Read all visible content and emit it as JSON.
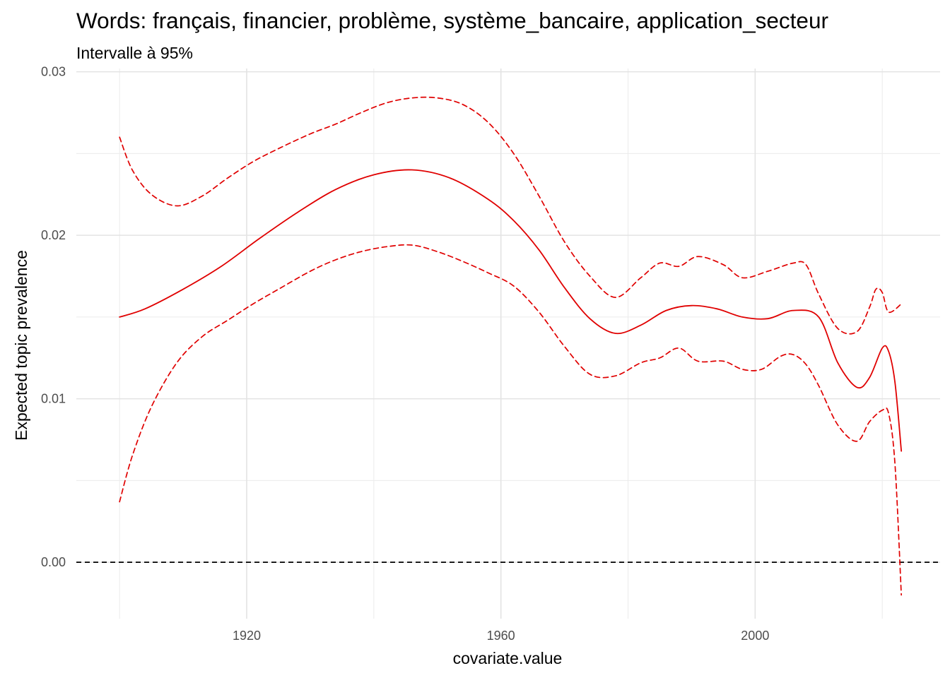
{
  "chart_data": {
    "type": "line",
    "title": "Words: français, financier, problème, système_bancaire, application_secteur",
    "subtitle": "Intervalle à 95%",
    "xlabel": "covariate.value",
    "ylabel": "Expected topic prevalence",
    "xlim": [
      1893.2,
      2029.1
    ],
    "ylim": [
      -0.00345,
      0.0302
    ],
    "x_ticks": [
      1920,
      1960,
      2000
    ],
    "x_tick_labels": [
      "1920",
      "1960",
      "2000"
    ],
    "y_ticks": [
      0,
      0.01,
      0.02,
      0.03
    ],
    "y_tick_labels": [
      "0.00",
      "0.01",
      "0.02",
      "0.03"
    ],
    "grid": true,
    "reference_line": {
      "y": 0,
      "style": "dashed",
      "color": "#000000"
    },
    "line_color": "#e00000",
    "series": [
      {
        "role": "estimate",
        "style": "solid",
        "x": [
          1900,
          1904,
          1910,
          1916,
          1922,
          1928,
          1934,
          1940,
          1946,
          1952,
          1958,
          1962,
          1966,
          1970,
          1974,
          1978,
          1982,
          1986,
          1990,
          1994,
          1998,
          2002,
          2006,
          2010,
          2013,
          2016,
          2018,
          2020,
          2021,
          2022,
          2023
        ],
        "values": [
          0.015,
          0.0155,
          0.0167,
          0.0181,
          0.0198,
          0.0214,
          0.0228,
          0.0237,
          0.024,
          0.0235,
          0.0222,
          0.0209,
          0.0191,
          0.0168,
          0.0149,
          0.014,
          0.0145,
          0.0154,
          0.0157,
          0.0155,
          0.015,
          0.0149,
          0.0154,
          0.015,
          0.0122,
          0.0107,
          0.0113,
          0.0131,
          0.0129,
          0.011,
          0.0068
        ]
      },
      {
        "role": "upper",
        "style": "dashed",
        "x": [
          1900,
          1902,
          1905,
          1909,
          1913,
          1917,
          1921,
          1925,
          1930,
          1934,
          1938,
          1942,
          1946,
          1950,
          1954,
          1958,
          1962,
          1966,
          1970,
          1974,
          1978,
          1982,
          1985,
          1988,
          1991,
          1995,
          1998,
          2002,
          2006,
          2008,
          2010,
          2013,
          2016,
          2018,
          2019,
          2020,
          2021,
          2023
        ],
        "values": [
          0.026,
          0.024,
          0.0225,
          0.0218,
          0.0224,
          0.0235,
          0.0245,
          0.0253,
          0.0262,
          0.0268,
          0.0275,
          0.0281,
          0.0284,
          0.0284,
          0.028,
          0.0269,
          0.025,
          0.0224,
          0.0196,
          0.0175,
          0.0162,
          0.0174,
          0.0183,
          0.0181,
          0.0187,
          0.0182,
          0.0174,
          0.0178,
          0.0183,
          0.0182,
          0.0164,
          0.0143,
          0.0141,
          0.0156,
          0.0167,
          0.0165,
          0.0153,
          0.0158
        ]
      },
      {
        "role": "lower",
        "style": "dashed",
        "x": [
          1900,
          1902,
          1905,
          1909,
          1913,
          1917,
          1921,
          1925,
          1930,
          1934,
          1938,
          1942,
          1946,
          1950,
          1954,
          1958,
          1962,
          1966,
          1970,
          1974,
          1978,
          1982,
          1985,
          1988,
          1991,
          1995,
          1998,
          2001,
          2004,
          2006,
          2008,
          2010,
          2013,
          2016,
          2018,
          2020,
          2021,
          2022,
          2023
        ],
        "values": [
          0.0037,
          0.0065,
          0.0095,
          0.0122,
          0.0138,
          0.0148,
          0.0158,
          0.0167,
          0.0178,
          0.0185,
          0.019,
          0.0193,
          0.0194,
          0.019,
          0.0184,
          0.0177,
          0.0169,
          0.0153,
          0.0132,
          0.0115,
          0.0114,
          0.0122,
          0.0125,
          0.0131,
          0.0123,
          0.0123,
          0.0118,
          0.0118,
          0.0126,
          0.0127,
          0.0121,
          0.0108,
          0.0084,
          0.0074,
          0.0086,
          0.0093,
          0.0091,
          0.006,
          -0.002
        ]
      }
    ]
  }
}
